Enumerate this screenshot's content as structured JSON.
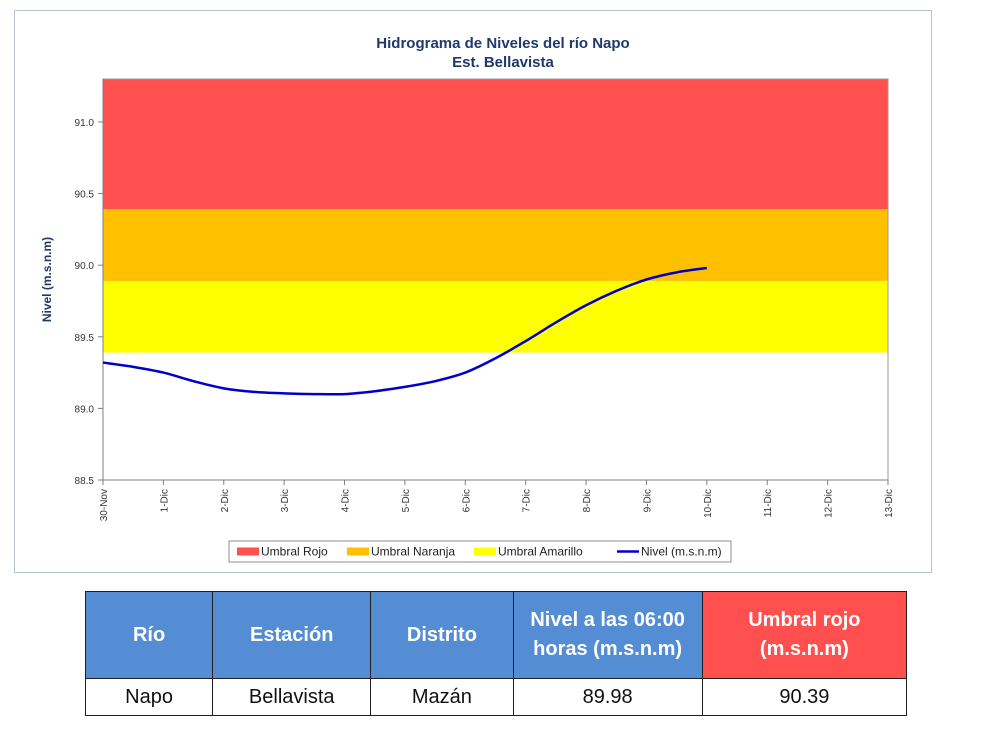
{
  "chart_data": {
    "type": "line",
    "title": "Hidrograma de Niveles del río Napo",
    "subtitle": "Est. Bellavista",
    "ylabel": "Nivel (m.s.n.m)",
    "xlabel": "",
    "ylim": [
      88.5,
      91.3
    ],
    "yticks": [
      "88.5",
      "89.0",
      "89.5",
      "90.0",
      "90.5",
      "91.0"
    ],
    "categories": [
      "30-Nov",
      "1-Dic",
      "2-Dic",
      "3-Dic",
      "4-Dic",
      "5-Dic",
      "6-Dic",
      "7-Dic",
      "8-Dic",
      "9-Dic",
      "10-Dic",
      "11-Dic",
      "12-Dic",
      "13-Dic"
    ],
    "bands": [
      {
        "name": "Umbral Rojo",
        "from": 90.39,
        "to": 91.3,
        "color": "#ff5050"
      },
      {
        "name": "Umbral Naranja",
        "from": 89.89,
        "to": 90.39,
        "color": "#ffc000"
      },
      {
        "name": "Umbral Amarillo",
        "from": 89.39,
        "to": 89.89,
        "color": "#ffff00"
      }
    ],
    "series": [
      {
        "name": "Nivel (m.s.n.m)",
        "color": "#0000cc",
        "x": [
          0,
          0.5,
          1,
          1.5,
          2,
          2.5,
          3,
          3.5,
          4,
          4.5,
          5,
          5.5,
          6,
          6.5,
          7,
          7.5,
          8,
          8.5,
          9,
          9.5,
          10
        ],
        "values": [
          89.32,
          89.29,
          89.25,
          89.19,
          89.14,
          89.115,
          89.105,
          89.1,
          89.1,
          89.12,
          89.15,
          89.19,
          89.25,
          89.35,
          89.47,
          89.6,
          89.72,
          89.82,
          89.9,
          89.95,
          89.98
        ]
      }
    ],
    "legend": {
      "placement": "bottom",
      "items": [
        "Umbral Rojo",
        "Umbral Naranja",
        "Umbral Amarillo",
        "Nivel (m.s.n.m)"
      ]
    },
    "grid": false
  },
  "table": {
    "headers": [
      {
        "label": "Río",
        "color": "#548dd4"
      },
      {
        "label": "Estación",
        "color": "#548dd4"
      },
      {
        "label": "Distrito",
        "color": "#548dd4"
      },
      {
        "label": "Nivel a las 06:00 horas (m.s.n.m)",
        "color": "#548dd4"
      },
      {
        "label": "Umbral rojo (m.s.n.m)",
        "color": "#ff4f4f"
      }
    ],
    "row": [
      "Napo",
      "Bellavista",
      "Mazán",
      "89.98",
      "90.39"
    ]
  }
}
